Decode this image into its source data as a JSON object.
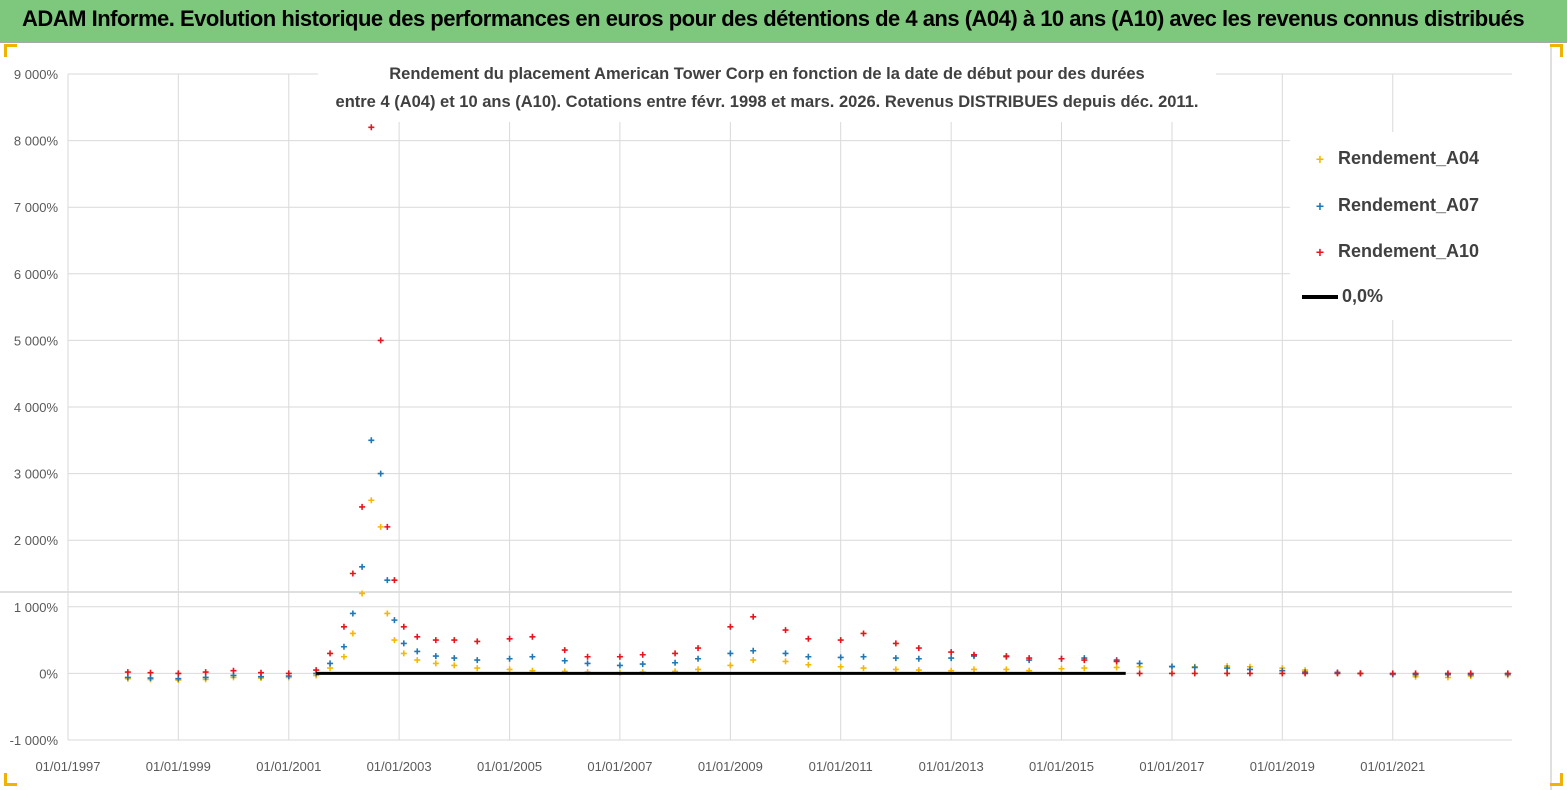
{
  "header": {
    "title": "ADAM Informe. Evolution historique des performances en euros pour des détentions de 4 ans (A04) à 10 ans (A10) avec les revenus connus distribués"
  },
  "colors": {
    "banner": "#7dc87d",
    "A04": "#f5b800",
    "A07": "#1f77b4",
    "A10": "#e8141c",
    "zero": "#000000"
  },
  "chart_data": {
    "type": "scatter",
    "title_lines": [
      "Rendement du placement American Tower Corp en fonction de la date de début pour des durées",
      "entre 4 (A04) et 10 ans (A10).  Cotations entre févr. 1998 et mars. 2026. Revenus DISTRIBUES depuis déc. 2011."
    ],
    "xlabel": "",
    "ylabel": "",
    "x_ticks": [
      "01/01/1997",
      "01/01/1999",
      "01/01/2001",
      "01/01/2003",
      "01/01/2005",
      "01/01/2007",
      "01/01/2009",
      "01/01/2011",
      "01/01/2013",
      "01/01/2015",
      "01/01/2017",
      "01/01/2019",
      "01/01/2021"
    ],
    "xlim": [
      "1997-01-01",
      "2023-03-01"
    ],
    "y_ticks": [
      "-1 000%",
      "0%",
      "1 000%",
      "2 000%",
      "3 000%",
      "4 000%",
      "5 000%",
      "6 000%",
      "7 000%",
      "8 000%",
      "9 000%"
    ],
    "ylim": [
      -1000,
      9000
    ],
    "grid": true,
    "legend_position": "top-right",
    "legend": [
      "Rendement_A04",
      "Rendement_A07",
      "Rendement_A10",
      "0,0%"
    ],
    "series": [
      {
        "name": "Rendement_A04",
        "marker": "+",
        "x": [
          "1998-02-01",
          "1998-07-01",
          "1999-01-01",
          "1999-07-01",
          "2000-01-01",
          "2000-07-01",
          "2001-01-01",
          "2001-07-01",
          "2001-10-01",
          "2002-01-01",
          "2002-03-01",
          "2002-05-01",
          "2002-07-01",
          "2002-09-01",
          "2002-10-15",
          "2002-12-01",
          "2003-02-01",
          "2003-05-01",
          "2003-09-01",
          "2004-01-01",
          "2004-06-01",
          "2005-01-01",
          "2005-06-01",
          "2006-01-01",
          "2006-06-01",
          "2007-01-01",
          "2007-06-01",
          "2008-01-01",
          "2008-06-01",
          "2009-01-01",
          "2009-06-01",
          "2010-01-01",
          "2010-06-01",
          "2011-01-01",
          "2011-06-01",
          "2012-01-01",
          "2012-06-01",
          "2013-01-01",
          "2013-06-01",
          "2014-01-01",
          "2014-06-01",
          "2015-01-01",
          "2015-06-01",
          "2016-01-01",
          "2016-06-01",
          "2017-01-01",
          "2017-06-01",
          "2018-01-01",
          "2018-06-01",
          "2019-01-01",
          "2019-06-01",
          "2020-01-01",
          "2020-06-01",
          "2021-01-01",
          "2021-06-01",
          "2022-01-01",
          "2022-06-01",
          "2023-02-01"
        ],
        "y": [
          -80,
          -90,
          -100,
          -90,
          -60,
          -70,
          -60,
          -30,
          80,
          250,
          600,
          1200,
          2600,
          2200,
          900,
          500,
          300,
          200,
          150,
          120,
          80,
          60,
          40,
          30,
          20,
          10,
          20,
          30,
          60,
          120,
          200,
          180,
          130,
          100,
          80,
          60,
          50,
          40,
          60,
          60,
          40,
          70,
          80,
          90,
          100,
          110,
          100,
          110,
          100,
          80,
          50,
          20,
          0,
          -20,
          -50,
          -60,
          -40,
          -30
        ]
      },
      {
        "name": "Rendement_A07",
        "marker": "+",
        "x": [
          "1998-02-01",
          "1998-07-01",
          "1999-01-01",
          "1999-07-01",
          "2000-01-01",
          "2000-07-01",
          "2001-01-01",
          "2001-07-01",
          "2001-10-01",
          "2002-01-01",
          "2002-03-01",
          "2002-05-01",
          "2002-07-01",
          "2002-09-01",
          "2002-10-15",
          "2002-12-01",
          "2003-02-01",
          "2003-05-01",
          "2003-09-01",
          "2004-01-01",
          "2004-06-01",
          "2005-01-01",
          "2005-06-01",
          "2006-01-01",
          "2006-06-01",
          "2007-01-01",
          "2007-06-01",
          "2008-01-01",
          "2008-06-01",
          "2009-01-01",
          "2009-06-01",
          "2010-01-01",
          "2010-06-01",
          "2011-01-01",
          "2011-06-01",
          "2012-01-01",
          "2012-06-01",
          "2013-01-01",
          "2013-06-01",
          "2014-01-01",
          "2014-06-01",
          "2015-01-01",
          "2015-06-01",
          "2016-01-01",
          "2016-06-01",
          "2017-01-01",
          "2017-06-01",
          "2018-01-01",
          "2018-06-01",
          "2019-01-01",
          "2019-06-01",
          "2020-01-01",
          "2020-06-01",
          "2021-01-01",
          "2021-06-01",
          "2022-01-01",
          "2022-06-01",
          "2023-02-01"
        ],
        "y": [
          -60,
          -70,
          -80,
          -60,
          -30,
          -50,
          -40,
          0,
          150,
          400,
          900,
          1600,
          3500,
          3000,
          1400,
          800,
          450,
          330,
          260,
          230,
          200,
          220,
          250,
          190,
          150,
          120,
          140,
          160,
          220,
          300,
          340,
          300,
          250,
          240,
          250,
          230,
          220,
          230,
          260,
          250,
          200,
          220,
          230,
          200,
          150,
          100,
          90,
          80,
          60,
          40,
          20,
          10,
          0,
          -10,
          -20,
          -20,
          -20,
          -10
        ]
      },
      {
        "name": "Rendement_A10",
        "marker": "+",
        "x": [
          "1998-02-01",
          "1998-07-01",
          "1999-01-01",
          "1999-07-01",
          "2000-01-01",
          "2000-07-01",
          "2001-01-01",
          "2001-07-01",
          "2001-10-01",
          "2002-01-01",
          "2002-03-01",
          "2002-05-01",
          "2002-07-01",
          "2002-09-01",
          "2002-10-15",
          "2002-12-01",
          "2003-02-01",
          "2003-05-01",
          "2003-09-01",
          "2004-01-01",
          "2004-06-01",
          "2005-01-01",
          "2005-06-01",
          "2006-01-01",
          "2006-06-01",
          "2007-01-01",
          "2007-06-01",
          "2008-01-01",
          "2008-06-01",
          "2009-01-01",
          "2009-06-01",
          "2010-01-01",
          "2010-06-01",
          "2011-01-01",
          "2011-06-01",
          "2012-01-01",
          "2012-06-01",
          "2013-01-01",
          "2013-06-01",
          "2014-01-01",
          "2014-06-01",
          "2015-01-01",
          "2015-06-01",
          "2016-01-01",
          "2016-06-01",
          "2017-01-01",
          "2017-06-01",
          "2018-01-01",
          "2018-06-01",
          "2019-01-01",
          "2019-06-01",
          "2020-01-01",
          "2020-06-01",
          "2021-01-01",
          "2021-06-01",
          "2022-01-01",
          "2022-06-01",
          "2023-02-01"
        ],
        "y": [
          20,
          10,
          0,
          20,
          40,
          10,
          0,
          50,
          300,
          700,
          1500,
          2500,
          8200,
          5000,
          2200,
          1400,
          700,
          550,
          500,
          500,
          480,
          520,
          550,
          350,
          250,
          250,
          280,
          300,
          380,
          700,
          850,
          650,
          520,
          500,
          600,
          450,
          380,
          320,
          280,
          260,
          230,
          220,
          200,
          180,
          0,
          0,
          0,
          0,
          0,
          0,
          0,
          0,
          0,
          0,
          0,
          0,
          0,
          0
        ]
      },
      {
        "name": "0,0%",
        "line": true,
        "x": [
          "2001-07-01",
          "2016-03-01"
        ],
        "y": [
          0,
          0
        ]
      }
    ]
  }
}
